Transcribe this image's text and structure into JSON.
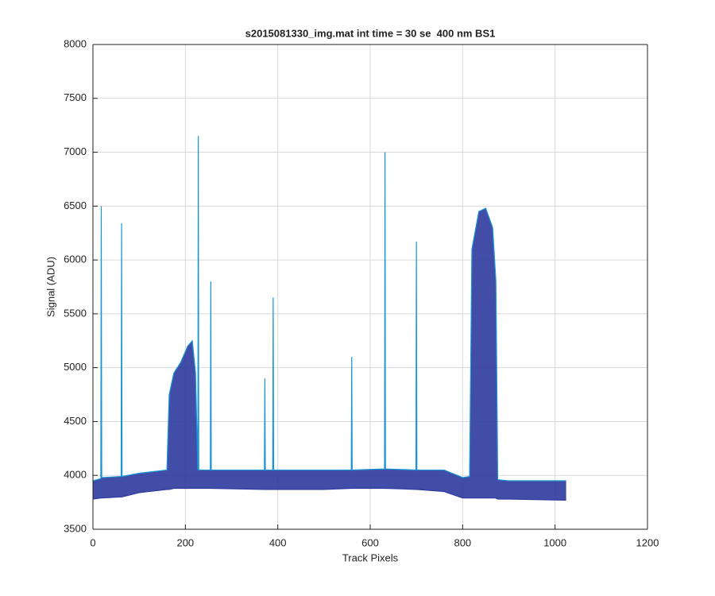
{
  "chart_data": {
    "type": "line",
    "title": "s2015081330_img.mat int time = 30 se  400 nm BS1",
    "x_label": "Track Pixels",
    "y_label": "Signal (ADU)",
    "x": [
      0,
      17,
      18,
      19,
      61,
      62,
      63,
      100,
      160,
      165,
      175,
      190,
      205,
      215,
      222,
      227,
      228,
      229,
      254,
      255,
      256,
      371,
      372,
      373,
      389,
      390,
      391,
      500,
      559,
      560,
      561,
      631,
      632,
      633,
      699,
      700,
      701,
      760,
      800,
      815,
      820,
      835,
      850,
      865,
      872,
      876,
      900,
      1020,
      1024
    ],
    "series": [
      {
        "color": "#1a95d4",
        "values": [
          3950,
          3970,
          6500,
          3980,
          3990,
          6340,
          3990,
          4020,
          4050,
          4750,
          4950,
          5050,
          5200,
          5250,
          4950,
          4050,
          7150,
          4050,
          4050,
          5800,
          4050,
          4050,
          4900,
          4050,
          4050,
          5650,
          4050,
          4050,
          4050,
          5100,
          4050,
          4060,
          7000,
          4060,
          4050,
          6170,
          4050,
          4050,
          3980,
          3990,
          6100,
          6450,
          6480,
          6300,
          5800,
          3960,
          3950,
          3950,
          3950
        ]
      },
      {
        "color": "#2d3a9e",
        "values": [
          3780,
          3790,
          3790,
          3790,
          3800,
          3800,
          3800,
          3840,
          3870,
          3870,
          3880,
          3880,
          3880,
          3880,
          3880,
          3880,
          3880,
          3880,
          3880,
          3880,
          3880,
          3870,
          3870,
          3870,
          3870,
          3870,
          3870,
          3870,
          3880,
          3880,
          3880,
          3880,
          3880,
          3880,
          3870,
          3870,
          3870,
          3850,
          3790,
          3790,
          3790,
          3790,
          3790,
          3790,
          3790,
          3780,
          3780,
          3770,
          3770
        ]
      }
    ],
    "xlim": [
      0,
      1200
    ],
    "xticks": [
      0,
      200,
      400,
      600,
      800,
      1000,
      1200
    ],
    "ylim": [
      3500,
      8000
    ],
    "yticks": [
      3500,
      4000,
      4500,
      5000,
      5500,
      6000,
      6500,
      7000,
      7500,
      8000
    ],
    "grid": true
  }
}
